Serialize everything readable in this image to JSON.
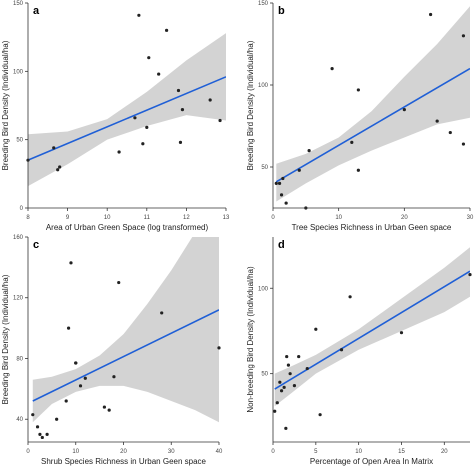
{
  "colors": {
    "band": "#d3d3d3",
    "line": "#1f5fd6",
    "point": "#222222",
    "axis": "#333333"
  },
  "chart_data": [
    {
      "panel_letter": "a",
      "type": "scatter",
      "xlabel": "Area of Urban Green Space (log transformed)",
      "ylabel": "Breeding Bird Density (Individual/ha)",
      "xlim": [
        8,
        13
      ],
      "ylim": [
        0,
        150
      ],
      "xticks": [
        8,
        9,
        10,
        11,
        12,
        13
      ],
      "yticks": [
        0,
        50,
        100,
        150
      ],
      "x": [
        8.0,
        8.75,
        8.8,
        8.65,
        10.3,
        10.7,
        10.8,
        10.9,
        11.0,
        11.05,
        11.3,
        11.5,
        11.8,
        11.85,
        11.9,
        12.6,
        12.85
      ],
      "y": [
        35,
        28,
        30,
        44,
        41,
        66,
        141,
        47,
        59,
        110,
        98,
        130,
        86,
        48,
        72,
        79,
        64
      ],
      "fit": {
        "x": [
          8,
          13
        ],
        "y": [
          35,
          96
        ]
      },
      "band": {
        "x": [
          8,
          9,
          10,
          11,
          12,
          13
        ],
        "upper": [
          54,
          56,
          65,
          85,
          108,
          128
        ],
        "lower": [
          16,
          32,
          50,
          60,
          68,
          64
        ]
      }
    },
    {
      "panel_letter": "b",
      "type": "scatter",
      "xlabel": "Tree Species Richness in Urban Geen space",
      "ylabel": "Breeding Bird Density (Individual/ha)",
      "xlim": [
        0,
        30
      ],
      "ylim": [
        25,
        150
      ],
      "xticks": [
        0,
        10,
        20,
        30
      ],
      "yticks": [
        50,
        100,
        150
      ],
      "x": [
        0.5,
        1,
        1.3,
        1.5,
        2,
        4,
        5,
        5.5,
        9,
        12,
        13,
        13,
        20,
        24,
        25,
        27,
        29,
        29
      ],
      "y": [
        40,
        40,
        33,
        43,
        28,
        48,
        25,
        60,
        110,
        65,
        48,
        97,
        85,
        143,
        78,
        71,
        130,
        64
      ],
      "fit": {
        "x": [
          0.5,
          30
        ],
        "y": [
          41,
          110
        ]
      },
      "band": {
        "x": [
          0.5,
          5,
          10,
          15,
          20,
          25,
          30
        ],
        "upper": [
          52,
          58,
          68,
          84,
          105,
          125,
          148
        ],
        "lower": [
          29,
          40,
          51,
          60,
          68,
          76,
          80
        ]
      }
    },
    {
      "panel_letter": "c",
      "type": "scatter",
      "xlabel": "Shrub Species Richness in Urban Geen space",
      "ylabel": "Breeding Bird Density (Individual/ha)",
      "xlim": [
        0,
        40
      ],
      "ylim": [
        25,
        160
      ],
      "xticks": [
        0,
        10,
        20,
        30,
        40
      ],
      "yticks": [
        40,
        80,
        120,
        160
      ],
      "x": [
        1,
        2,
        2.5,
        3,
        4,
        6,
        8,
        8.5,
        9,
        10,
        10,
        11,
        12,
        16,
        17,
        18,
        19,
        28,
        40
      ],
      "y": [
        43,
        35,
        30,
        28,
        30,
        40,
        52,
        100,
        143,
        77,
        77,
        62,
        67,
        48,
        46,
        68,
        130,
        110,
        87
      ],
      "fit": {
        "x": [
          1,
          40
        ],
        "y": [
          52,
          112
        ]
      },
      "band": {
        "x": [
          1,
          5,
          10,
          15,
          20,
          25,
          30,
          35,
          40
        ],
        "upper": [
          66,
          68,
          73,
          82,
          96,
          116,
          138,
          163,
          186
        ],
        "lower": [
          38,
          50,
          58,
          62,
          62,
          58,
          52,
          46,
          38
        ]
      }
    },
    {
      "panel_letter": "d",
      "type": "scatter",
      "xlabel": "Percentage of Open Area In Matrix",
      "ylabel": "Non-breeding Bird Density (Individual/ha)",
      "xlim": [
        0,
        23
      ],
      "ylim": [
        10,
        130
      ],
      "xticks": [
        0,
        5,
        10,
        15,
        20
      ],
      "yticks": [
        50,
        100
      ],
      "x": [
        0.2,
        0.5,
        0.8,
        1,
        1.3,
        1.5,
        1.6,
        1.8,
        2,
        2.5,
        3,
        4,
        5,
        5.5,
        8,
        9,
        15,
        23
      ],
      "y": [
        28,
        33,
        45,
        40,
        42,
        18,
        60,
        55,
        50,
        43,
        60,
        53,
        76,
        26,
        64,
        95,
        74,
        108
      ],
      "fit": {
        "x": [
          0.2,
          23
        ],
        "y": [
          41,
          110
        ]
      },
      "band": {
        "x": [
          0.2,
          2,
          5,
          10,
          15,
          20,
          23
        ],
        "upper": [
          50,
          54,
          61,
          76,
          94,
          112,
          124
        ],
        "lower": [
          31,
          38,
          50,
          64,
          75,
          86,
          95
        ]
      }
    }
  ]
}
